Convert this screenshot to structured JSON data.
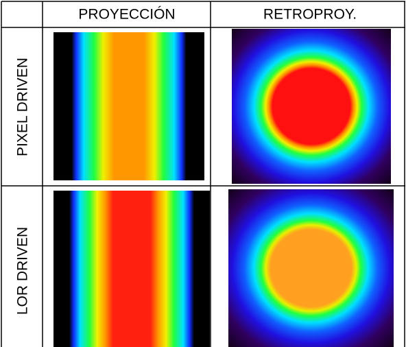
{
  "table": {
    "columns": [
      "PROYECCIÓN",
      "RETROPROY."
    ],
    "rows": [
      "PIXEL DRIVEN",
      "LOR DRIVEN"
    ]
  }
}
